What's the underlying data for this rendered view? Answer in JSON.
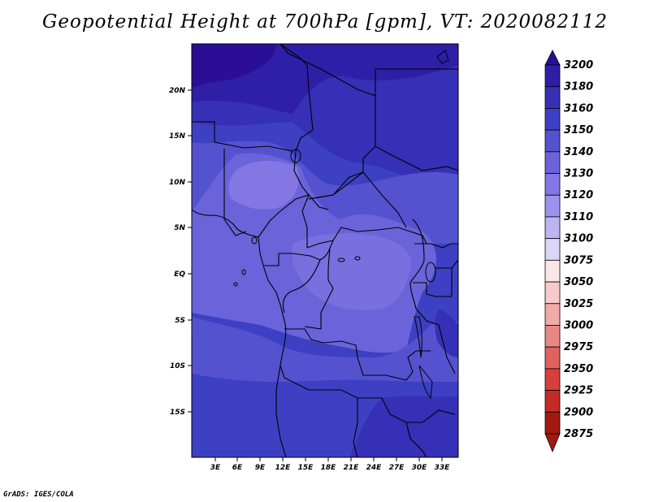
{
  "title": "Geopotential Height at 700hPa [gpm], VT: 2020082112",
  "credit": "GrADS: IGES/COLA",
  "axes": {
    "lat_labels": [
      "20N",
      "15N",
      "10N",
      "5N",
      "EQ",
      "5S",
      "10S",
      "15S"
    ],
    "lon_labels": [
      "3E",
      "6E",
      "9E",
      "12E",
      "15E",
      "18E",
      "21E",
      "24E",
      "27E",
      "30E",
      "33E"
    ]
  },
  "colorbar": {
    "levels": [
      "3200",
      "3180",
      "3160",
      "3150",
      "3140",
      "3130",
      "3120",
      "3110",
      "3100",
      "3075",
      "3050",
      "3025",
      "3000",
      "2975",
      "2950",
      "2925",
      "2900",
      "2875"
    ],
    "colors": [
      "#2a0f96",
      "#2e1fa6",
      "#3530b6",
      "#3d40c2",
      "#5552d0",
      "#6a63da",
      "#8477e3",
      "#9f92ea",
      "#bdb4f0",
      "#dcd6f6",
      "#fbe6e6",
      "#f8cbcb",
      "#f2aaa8",
      "#e88885",
      "#e0625e",
      "#d63f3a",
      "#c52b26",
      "#a21912"
    ],
    "min_label": "2875",
    "max_label": "3200"
  }
}
